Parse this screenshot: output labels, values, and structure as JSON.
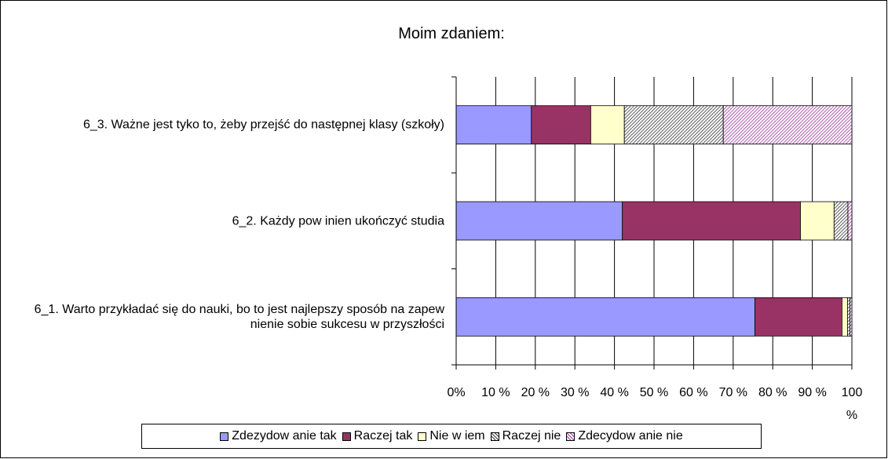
{
  "chart_data": {
    "type": "stacked-barh",
    "title": "Moim zdaniem:",
    "categories": [
      "6_3. Ważne jest tyko to, żeby przejść do następnej klasy (szkoły)",
      "6_2. Każdy pow inien ukończyć studia",
      "6_1. Warto przykładać się do nauki, bo to jest najlepszy sposób na zapew nienie sobie sukcesu w  przyszłości"
    ],
    "series": [
      {
        "name": "Zdezydow anie tak",
        "color": "#9999ff",
        "values": [
          19,
          42,
          75.5
        ]
      },
      {
        "name": "Raczej tak",
        "color": "#993366",
        "values": [
          15,
          45,
          22
        ]
      },
      {
        "name": "Nie w iem",
        "color": "#ffffcc",
        "values": [
          8.5,
          8.5,
          1.4
        ]
      },
      {
        "name": "Raczej nie",
        "color": "#333333",
        "hatch": true,
        "values": [
          25,
          3.5,
          0.6
        ]
      },
      {
        "name": "Zdecydow anie nie",
        "color": "#993399",
        "hatch": true,
        "values": [
          32.5,
          1,
          0.5
        ]
      }
    ],
    "xlim": [
      0,
      100
    ],
    "xticks": [
      {
        "value": 0,
        "label": "0%"
      },
      {
        "value": 10,
        "label": "10 %"
      },
      {
        "value": 20,
        "label": "20 %"
      },
      {
        "value": 30,
        "label": "30 %"
      },
      {
        "value": 40,
        "label": "40 %"
      },
      {
        "value": 50,
        "label": "50 %"
      },
      {
        "value": 60,
        "label": "60 %"
      },
      {
        "value": 70,
        "label": "70 %"
      },
      {
        "value": 80,
        "label": "80 %"
      },
      {
        "value": 90,
        "label": "90 %"
      },
      {
        "value": 100,
        "label": "100 %"
      }
    ],
    "grid": true,
    "legend": "bottom"
  }
}
